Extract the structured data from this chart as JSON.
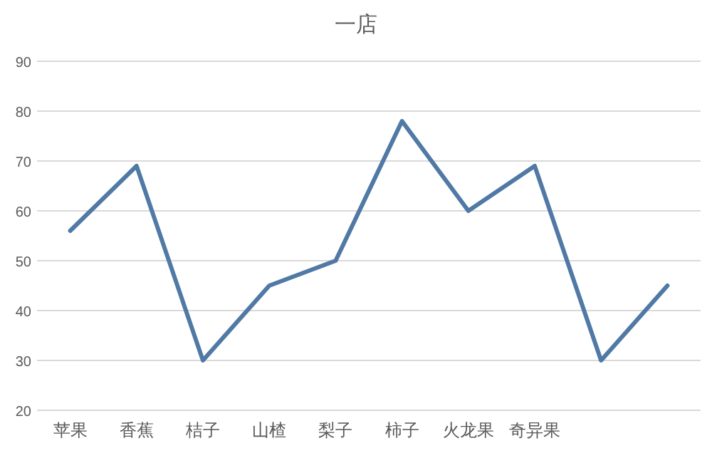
{
  "chart_data": {
    "type": "line",
    "title": "一店",
    "categories": [
      "苹果",
      "香蕉",
      "桔子",
      "山楂",
      "梨子",
      "柿子",
      "火龙果",
      "奇异果",
      null,
      null
    ],
    "series": [
      {
        "color": "#5079a5",
        "values": [
          56,
          69,
          30,
          45,
          50,
          78,
          60,
          69,
          30,
          45
        ]
      }
    ],
    "ylim": [
      20,
      90
    ],
    "yticks": [
      20,
      30,
      40,
      50,
      60,
      70,
      80,
      90
    ],
    "grid": "y",
    "marker": "none",
    "line_style": "solid"
  }
}
